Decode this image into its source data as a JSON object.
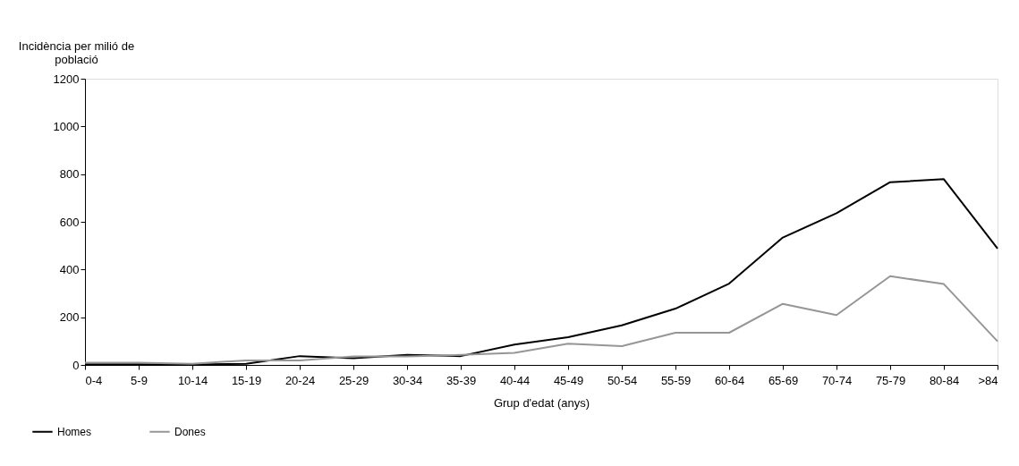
{
  "chart_data": {
    "type": "line",
    "xlabel": "Grup d'edat (anys)",
    "ylabel": "Incidència per milió de població",
    "categories": [
      "0-4",
      "5-9",
      "10-14",
      "15-19",
      "20-24",
      "25-29",
      "30-34",
      "35-39",
      "40-44",
      "45-49",
      "50-54",
      "55-59",
      "60-64",
      "65-69",
      "70-74",
      "75-79",
      "80-84",
      ">84"
    ],
    "series": [
      {
        "name": "Homes",
        "color": "#000000",
        "values": [
          3,
          3,
          2,
          5,
          37,
          28,
          42,
          37,
          85,
          116,
          166,
          236,
          341,
          534,
          636,
          766,
          779,
          488
        ]
      },
      {
        "name": "Dones",
        "color": "#969696",
        "values": [
          9,
          9,
          5,
          19,
          19,
          36,
          36,
          42,
          51,
          89,
          79,
          135,
          135,
          256,
          209,
          372,
          339,
          99
        ]
      }
    ],
    "ylim": [
      0,
      1200
    ],
    "yticks": [
      0,
      200,
      400,
      600,
      800,
      1000,
      1200
    ],
    "grid": false,
    "legend": "bottom left",
    "marker": "none",
    "line_style": "solid"
  }
}
